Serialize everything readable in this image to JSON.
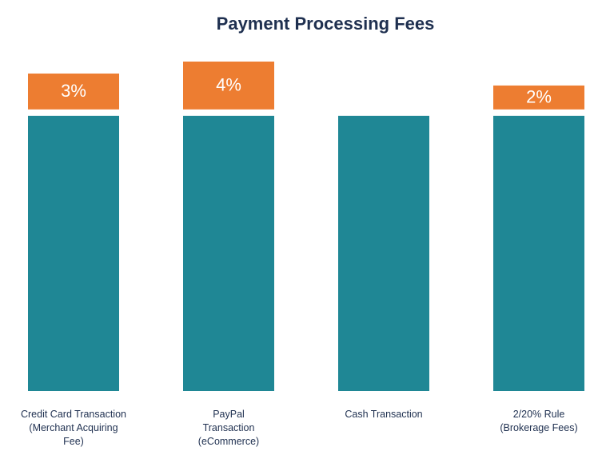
{
  "chart_data": {
    "type": "stacked-bar",
    "title": "Payment Processing Fees",
    "categories": [
      "Credit Card Transaction\n(Merchant Acquiring\nFee)",
      "PayPal\nTransaction\n(eCommerce)",
      "Cash Transaction",
      "2/20% Rule\n(Brokerage Fees)"
    ],
    "series": [
      {
        "color": "#1f8795",
        "values": [
          23,
          23,
          23,
          23
        ]
      },
      {
        "color": "#ed7d31",
        "values": [
          3,
          4,
          null,
          2
        ],
        "value_labels": [
          "3%",
          "4%",
          null,
          "2%"
        ]
      }
    ]
  }
}
